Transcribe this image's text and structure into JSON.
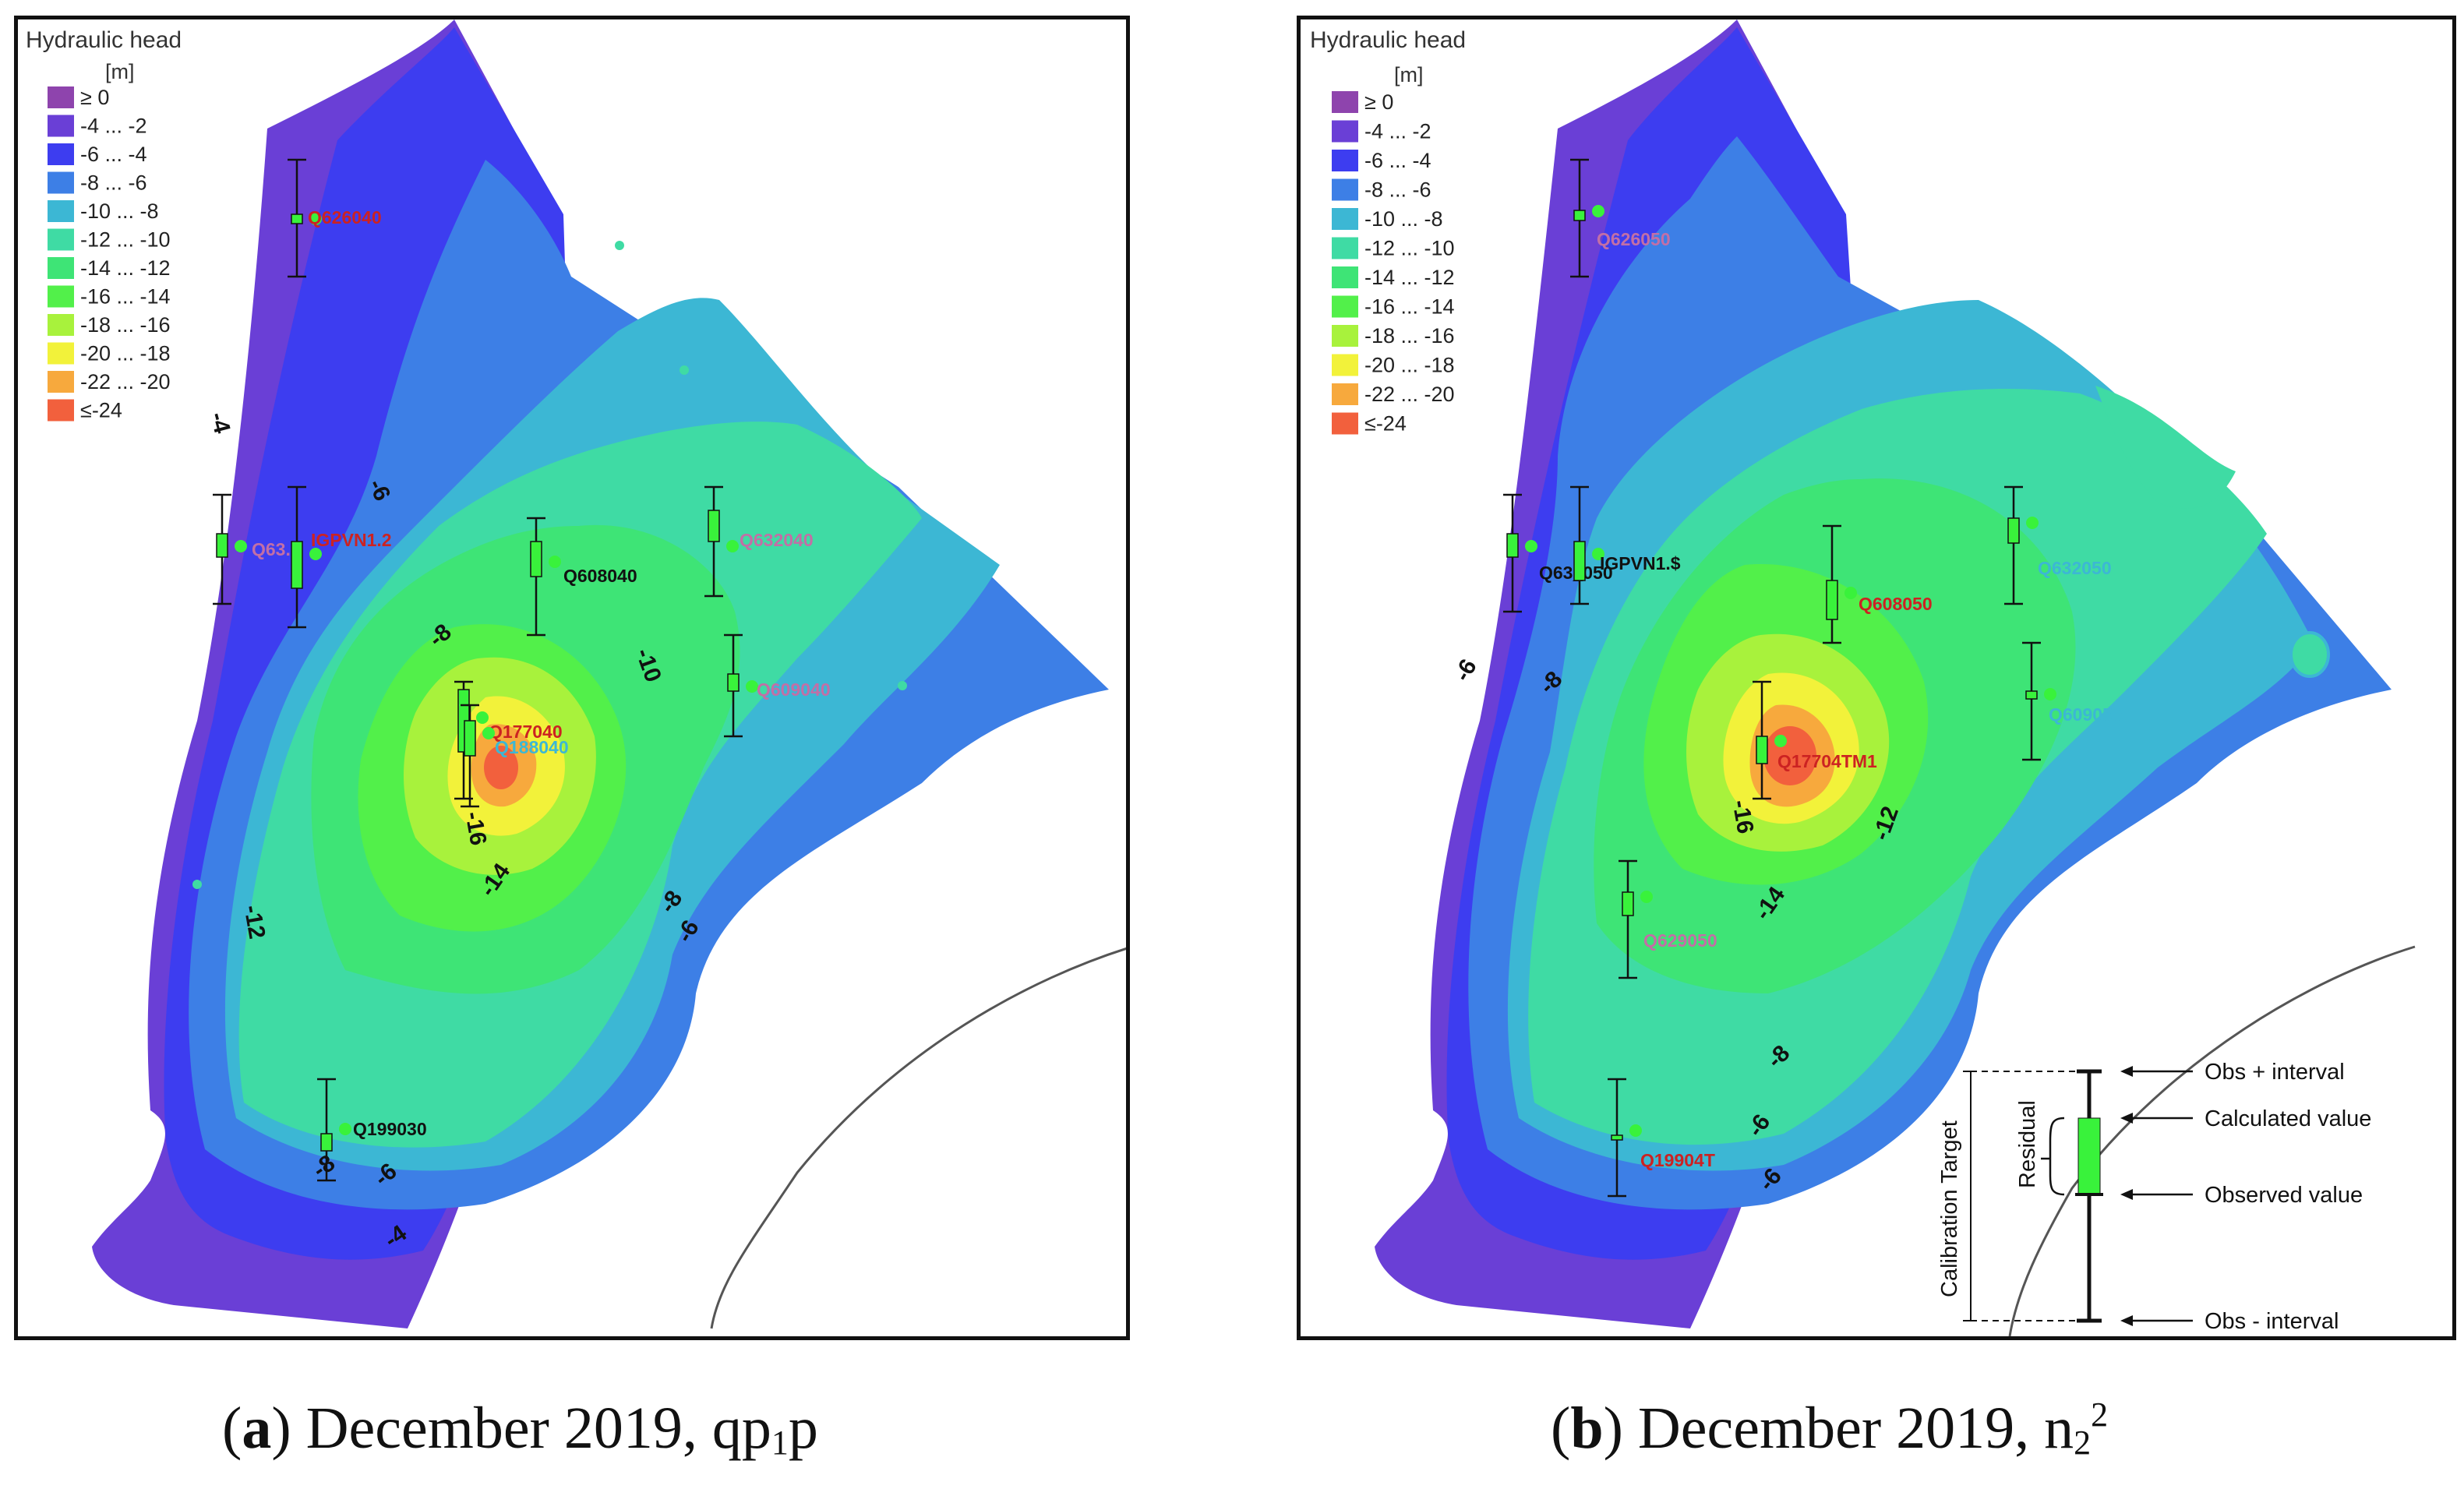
{
  "legend": {
    "title": "Hydraulic head",
    "unit": "[m]",
    "classes": [
      {
        "label": "≥ 0",
        "color": "#8e44ad"
      },
      {
        "label": "-4 ... -2",
        "color": "#6a3fd6"
      },
      {
        "label": "-6 ... -4",
        "color": "#3d3df0"
      },
      {
        "label": "-8 ... -6",
        "color": "#3d7fe6"
      },
      {
        "label": "-10 ... -8",
        "color": "#3cb7d4"
      },
      {
        "label": "-12 ... -10",
        "color": "#3fdba4"
      },
      {
        "label": "-14 ... -12",
        "color": "#3ee476"
      },
      {
        "label": "-16 ... -14",
        "color": "#52f04a"
      },
      {
        "label": "-18 ... -16",
        "color": "#a8f23c"
      },
      {
        "label": "-20 ... -18",
        "color": "#f2f23a"
      },
      {
        "label": "-22 ... -20",
        "color": "#f7a93d"
      },
      {
        "label": "≤-24",
        "color": "#f2603d"
      }
    ]
  },
  "panel_a": {
    "wells": [
      "Q626040",
      "Q63...",
      "IGPVN1.2",
      "Q608040",
      "Q632040",
      "Q609040",
      "Q177040",
      "Q188040",
      "Q199030"
    ],
    "contour_labels": [
      "-4",
      "-6",
      "-8",
      "-10",
      "-12",
      "-14",
      "-16",
      "-8",
      "-6",
      "-8",
      "-6",
      "-4"
    ]
  },
  "panel_b": {
    "wells": [
      "Q626050",
      "Q63_050",
      "IGPVN1.$",
      "Q608050",
      "Q632050",
      "Q609050",
      "Q17704TM1",
      "Q629050",
      "Q19904T"
    ],
    "contour_labels": [
      "-8",
      "-6",
      "-16",
      "-14",
      "-12",
      "-8",
      "-6",
      "-6"
    ]
  },
  "calibration": {
    "target_label": "Calibration Target",
    "residual_label": "Residual",
    "obs_plus": "Obs + interval",
    "calculated": "Calculated value",
    "observed": "Observed value",
    "obs_minus": "Obs - interval"
  },
  "captions": {
    "a": {
      "letter": "a",
      "text": " December 2019, qp",
      "sub": "1",
      "tail": "p"
    },
    "b": {
      "letter": "b",
      "text": " December 2019, n",
      "sub": "2",
      "sup": "2"
    }
  },
  "colors": {
    "well_green": "#39f23b",
    "label_red": "#cc2222",
    "label_pink": "#c26fa6",
    "label_dark": "#111111"
  }
}
